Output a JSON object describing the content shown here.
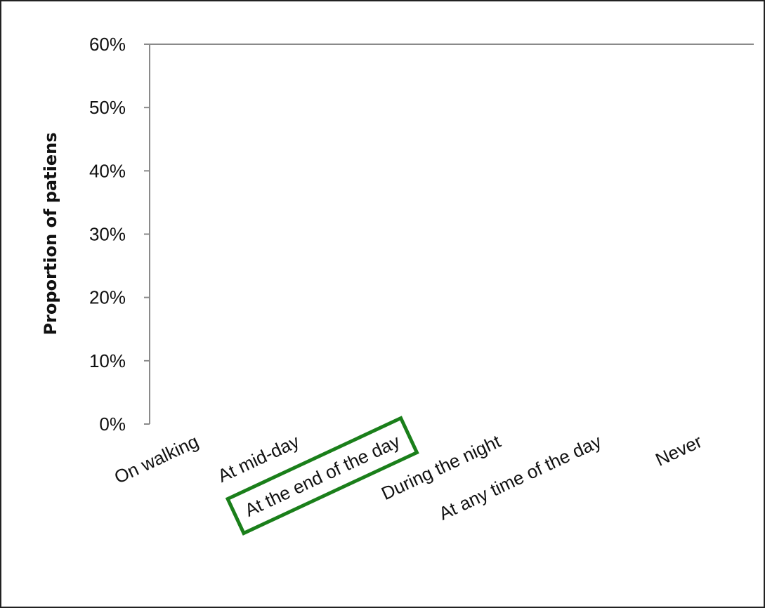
{
  "chart_data": {
    "type": "bar",
    "title": "",
    "xlabel": "",
    "ylabel": "Proportion of patiens",
    "categories": [
      "On walking",
      "At mid-day",
      "At the end of the day",
      "During the night",
      "At any time of the day",
      "Never"
    ],
    "series": [
      {
        "values": [
          null,
          null,
          null,
          null,
          null,
          null
        ]
      }
    ],
    "ylim": [
      0,
      0.6
    ],
    "yticks": [
      "0%",
      "10%",
      "20%",
      "30%",
      "40%",
      "50%",
      "60%"
    ],
    "grid": false,
    "legend": "none",
    "highlighted_category": "At the end of the day",
    "highlight_color": "#1a7f1a"
  }
}
